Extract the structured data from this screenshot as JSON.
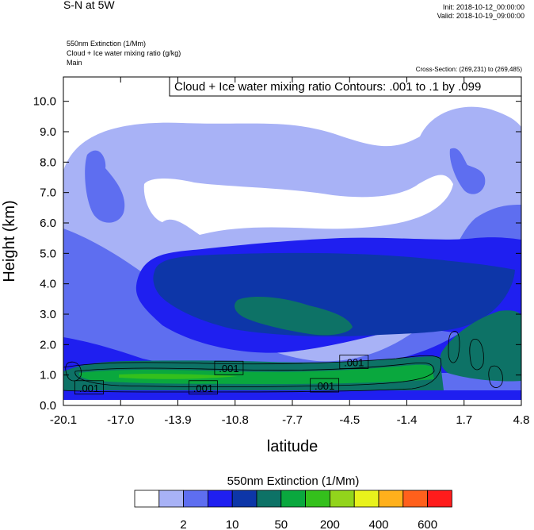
{
  "header": {
    "title": "S-N at 5W",
    "init": "Init: 2018-10-12_00:00:00",
    "valid": "Valid: 2018-10-19_09:00:00",
    "line1": "550nm Extinction   (1/Mm)",
    "line2": "Cloud + Ice water mixing ratio   (g/kg)",
    "line3": "Main",
    "cross_section": "Cross-Section: (269,231) to (269,485)"
  },
  "chart_data": {
    "type": "heatmap",
    "title": "S-N at 5W",
    "xlabel": "latitude",
    "ylabel": "Height (km)",
    "xlim": [
      -20.1,
      4.8
    ],
    "ylim": [
      0,
      10.8
    ],
    "x_tick_labels": [
      "-20.1",
      "-17.0",
      "-13.9",
      "-10.8",
      "-7.7",
      "-4.5",
      "-1.4",
      "1.7",
      "4.8"
    ],
    "y_tick_labels": [
      "0.0",
      "1.0",
      "2.0",
      "3.0",
      "4.0",
      "5.0",
      "6.0",
      "7.0",
      "8.0",
      "9.0",
      "10.0"
    ],
    "y_ticks": [
      0,
      1,
      2,
      3,
      4,
      5,
      6,
      7,
      8,
      9,
      10
    ],
    "contour_info": "Cloud + Ice water mixing ratio Contours: .001 to .1 by .099",
    "contour_labels": [
      {
        "text": ".001",
        "lat": -18.7,
        "km": 0.58
      },
      {
        "text": ".001",
        "lat": -11.1,
        "km": 1.22
      },
      {
        "text": ".001",
        "lat": -12.5,
        "km": 0.58
      },
      {
        "text": ".001",
        "lat": -4.3,
        "km": 1.42
      },
      {
        "text": ".001",
        "lat": -5.9,
        "km": 0.65
      }
    ],
    "colorbar": {
      "title": "550nm Extinction  (1/Mm)",
      "colors": [
        "#ffffff",
        "#a8b2f6",
        "#5e6ef0",
        "#1f1ff0",
        "#0d36a8",
        "#0d7266",
        "#0aa83e",
        "#34c01c",
        "#92d41c",
        "#e8f21c",
        "#ffb01c",
        "#ff601c",
        "#ff1c1c"
      ],
      "tick_labels": [
        "2",
        "10",
        "50",
        "200",
        "400",
        "600"
      ],
      "tick_after_box": [
        1,
        3,
        5,
        7,
        9,
        11
      ]
    }
  }
}
